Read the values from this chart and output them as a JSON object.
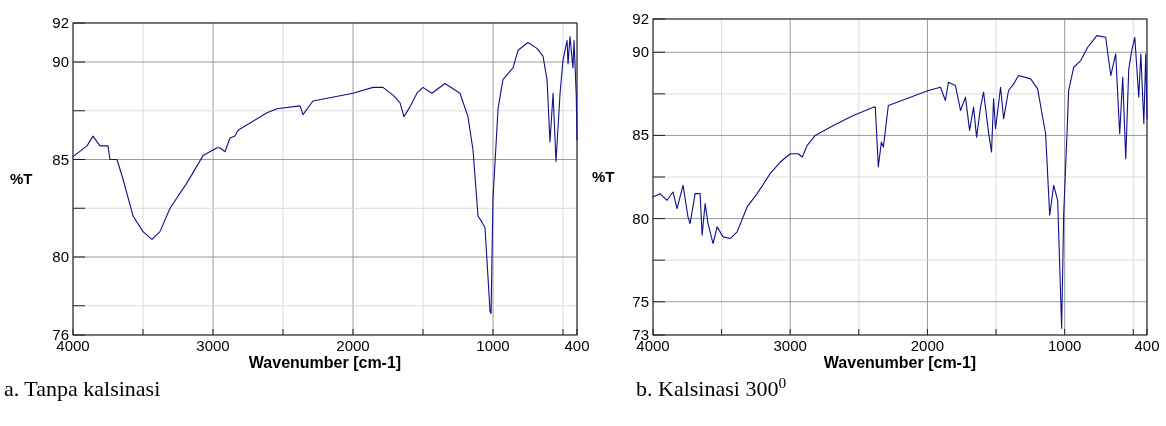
{
  "chart_data": [
    {
      "type": "line",
      "title": "a. Tanpa kalsinasi",
      "xlabel": "Wavenumber [cm-1]",
      "ylabel": "%T",
      "xlim": [
        4000,
        400
      ],
      "ylim": [
        76,
        92
      ],
      "xticks": [
        4000,
        {
          "value": 3500,
          "label": null
        },
        3000,
        {
          "value": 2500,
          "label": null
        },
        2000,
        {
          "value": 1500,
          "label": null
        },
        1000,
        {
          "value": 500,
          "label": null
        },
        400
      ],
      "yticks": [
        76,
        {
          "value": 77.5,
          "label": null
        },
        80,
        {
          "value": 82.5,
          "label": null
        },
        85,
        {
          "value": 87.5,
          "label": null
        },
        90,
        92
      ],
      "grid": true,
      "series": [
        {
          "color": "#10108c",
          "x": [
            4000,
            3900,
            3857,
            3807,
            3750,
            3736,
            3686,
            3643,
            3571,
            3500,
            3436,
            3379,
            3307,
            3186,
            3071,
            2971,
            2950,
            2914,
            2879,
            2843,
            2821,
            2614,
            2543,
            2379,
            2357,
            2286,
            2000,
            1857,
            1786,
            1714,
            1664,
            1636,
            1593,
            1543,
            1500,
            1436,
            1343,
            1236,
            1179,
            1143,
            1107,
            1080,
            1057,
            1021,
            1014,
            1000,
            964,
            929,
            857,
            821,
            750,
            686,
            643,
            614,
            593,
            571,
            550,
            521,
            500,
            471,
            464,
            450,
            429,
            421,
            405,
            400
          ],
          "values": [
            85.15,
            85.7,
            86.2,
            85.7,
            85.7,
            85.0,
            85.0,
            84.0,
            82.1,
            81.3,
            80.9,
            81.3,
            82.5,
            83.8,
            85.2,
            85.6,
            85.6,
            85.4,
            86.1,
            86.2,
            86.5,
            87.4,
            87.6,
            87.75,
            87.3,
            88.0,
            88.4,
            88.7,
            88.7,
            88.3,
            87.9,
            87.2,
            87.7,
            88.4,
            88.7,
            88.4,
            88.9,
            88.4,
            87.2,
            85.5,
            82.1,
            81.8,
            81.5,
            77.2,
            77.1,
            83.0,
            87.6,
            89.1,
            89.7,
            90.6,
            91.0,
            90.7,
            90.3,
            89.1,
            85.9,
            88.4,
            84.9,
            88.4,
            90.1,
            91.1,
            89.9,
            91.3,
            89.7,
            91.1,
            88.2,
            86.0
          ]
        }
      ]
    },
    {
      "type": "line",
      "title": "b. Kalsinasi 300$^{0}$",
      "xlabel": "Wavenumber [cm-1]",
      "ylabel": "%T",
      "xlim": [
        4000,
        400
      ],
      "ylim": [
        73,
        92
      ],
      "xticks": [
        4000,
        {
          "value": 3500,
          "label": null
        },
        3000,
        {
          "value": 2500,
          "label": null
        },
        2000,
        {
          "value": 1500,
          "label": null
        },
        1000,
        {
          "value": 500,
          "label": null
        },
        400
      ],
      "yticks": [
        73,
        75,
        {
          "value": 77.5,
          "label": null
        },
        80,
        {
          "value": 82.5,
          "label": null
        },
        85,
        {
          "value": 87.5,
          "label": null
        },
        90,
        92
      ],
      "grid": true,
      "series": [
        {
          "color": "#10108c",
          "x": [
            4000,
            3949,
            3898,
            3854,
            3825,
            3781,
            3745,
            3730,
            3693,
            3657,
            3642,
            3620,
            3599,
            3562,
            3533,
            3489,
            3438,
            3387,
            3314,
            3241,
            3146,
            3073,
            3000,
            2942,
            2912,
            2876,
            2818,
            2686,
            2540,
            2394,
            2380,
            2358,
            2336,
            2321,
            2285,
            2124,
            1993,
            1905,
            1869,
            1847,
            1796,
            1759,
            1723,
            1693,
            1664,
            1642,
            1613,
            1591,
            1555,
            1533,
            1518,
            1504,
            1467,
            1445,
            1409,
            1372,
            1336,
            1248,
            1197,
            1139,
            1109,
            1080,
            1051,
            1022,
            1007,
            985,
            971,
            934,
            883,
            832,
            766,
            701,
            664,
            628,
            599,
            577,
            555,
            533,
            511,
            489,
            460,
            445,
            423,
            409,
            400
          ],
          "values": [
            81.3,
            81.5,
            81.1,
            81.6,
            80.6,
            82.0,
            80.1,
            79.7,
            81.5,
            81.5,
            79.0,
            80.9,
            79.7,
            78.5,
            79.5,
            78.9,
            78.8,
            79.2,
            80.7,
            81.5,
            82.7,
            83.4,
            83.9,
            83.9,
            83.7,
            84.4,
            85.0,
            85.6,
            86.2,
            86.7,
            86.7,
            83.1,
            84.6,
            84.3,
            86.8,
            87.3,
            87.7,
            87.9,
            87.1,
            88.2,
            88.0,
            86.5,
            87.3,
            85.3,
            86.7,
            84.9,
            86.7,
            87.6,
            85.2,
            84.0,
            87.2,
            85.4,
            87.9,
            86.0,
            87.7,
            88.1,
            88.6,
            88.4,
            87.8,
            85.1,
            80.2,
            82.0,
            81.1,
            73.4,
            80.3,
            84.7,
            87.7,
            89.1,
            89.5,
            90.3,
            91.0,
            90.9,
            88.6,
            89.9,
            85.1,
            88.5,
            83.6,
            89.0,
            90.1,
            90.9,
            87.3,
            89.9,
            85.7,
            89.9,
            86.0
          ]
        }
      ]
    }
  ]
}
